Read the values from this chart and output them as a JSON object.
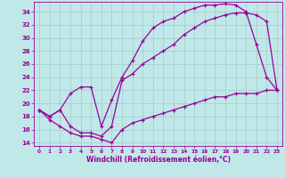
{
  "xlabel": "Windchill (Refroidissement éolien,°C)",
  "bg_color": "#c0e8e8",
  "line_color": "#990099",
  "grid_color": "#a8d0d0",
  "xlim": [
    -0.5,
    23.5
  ],
  "ylim": [
    13.5,
    35.5
  ],
  "xticks": [
    0,
    1,
    2,
    3,
    4,
    5,
    6,
    7,
    8,
    9,
    10,
    11,
    12,
    13,
    14,
    15,
    16,
    17,
    18,
    19,
    20,
    21,
    22,
    23
  ],
  "yticks": [
    14,
    16,
    18,
    20,
    22,
    24,
    26,
    28,
    30,
    32,
    34
  ],
  "line1_x": [
    0,
    1,
    2,
    3,
    4,
    5,
    6,
    7,
    8,
    9,
    10,
    11,
    12,
    13,
    14,
    15,
    16,
    17,
    18,
    19,
    20,
    21,
    22,
    23
  ],
  "line1_y": [
    19.0,
    18.0,
    19.0,
    21.5,
    22.5,
    22.5,
    16.5,
    20.5,
    24.0,
    26.5,
    29.5,
    31.5,
    32.5,
    33.0,
    34.0,
    34.5,
    35.0,
    35.0,
    35.2,
    35.0,
    34.0,
    29.0,
    24.0,
    22.0
  ],
  "line2_x": [
    0,
    1,
    2,
    3,
    4,
    5,
    6,
    7,
    8,
    9,
    10,
    11,
    12,
    13,
    14,
    15,
    16,
    17,
    18,
    19,
    20,
    21,
    22,
    23
  ],
  "line2_y": [
    19.0,
    18.0,
    19.0,
    16.5,
    15.5,
    15.5,
    15.0,
    16.5,
    23.5,
    24.5,
    26.0,
    27.0,
    28.0,
    29.0,
    30.5,
    31.5,
    32.5,
    33.0,
    33.5,
    33.8,
    33.8,
    33.5,
    32.5,
    22.0
  ],
  "line3_x": [
    0,
    1,
    2,
    3,
    4,
    5,
    6,
    7,
    8,
    9,
    10,
    11,
    12,
    13,
    14,
    15,
    16,
    17,
    18,
    19,
    20,
    21,
    22,
    23
  ],
  "line3_y": [
    19.0,
    17.5,
    16.5,
    15.5,
    15.0,
    15.0,
    14.5,
    14.0,
    16.0,
    17.0,
    17.5,
    18.0,
    18.5,
    19.0,
    19.5,
    20.0,
    20.5,
    21.0,
    21.0,
    21.5,
    21.5,
    21.5,
    22.0,
    22.0
  ]
}
